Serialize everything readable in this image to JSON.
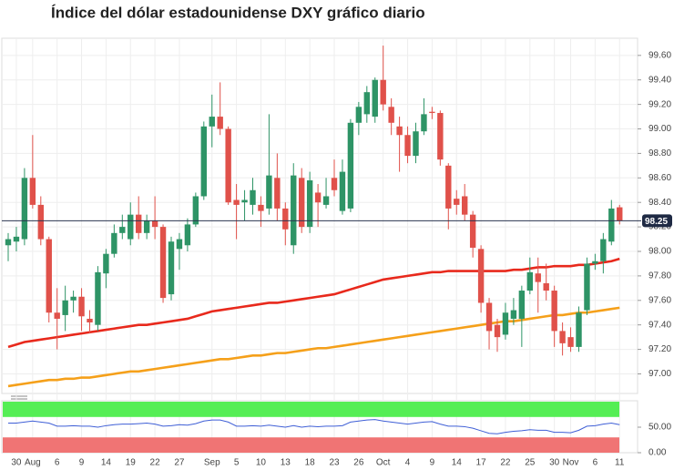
{
  "chart_data": [
    {
      "type": "candlestick",
      "title": "Índice del dólar estadounidense DXY gráfico diario",
      "categories": [
        null,
        "30",
        null,
        "Aug",
        null,
        null,
        "6",
        null,
        null,
        "9",
        null,
        null,
        "14",
        null,
        null,
        "19",
        null,
        null,
        "22",
        null,
        null,
        "27",
        null,
        null,
        null,
        "Sep",
        null,
        null,
        "5",
        null,
        null,
        "10",
        null,
        null,
        "13",
        null,
        null,
        "18",
        null,
        null,
        "23",
        null,
        null,
        "26",
        null,
        null,
        "Oct",
        null,
        null,
        "4",
        null,
        null,
        "9",
        null,
        null,
        "14",
        null,
        null,
        "17",
        null,
        null,
        "22",
        null,
        null,
        "25",
        null,
        null,
        "30",
        null,
        "Nov",
        null,
        null,
        "6",
        null,
        null,
        "11"
      ],
      "open": [
        98.05,
        98.08,
        98.1,
        98.6,
        98.38,
        98.1,
        97.5,
        97.48,
        97.6,
        97.63,
        97.45,
        97.4,
        97.82,
        97.98,
        98.15,
        98.1,
        98.3,
        98.15,
        98.25,
        98.2,
        97.65,
        98.02,
        98.05,
        98.22,
        98.45,
        99.02,
        99.1,
        99.0,
        98.42,
        98.4,
        98.38,
        98.38,
        98.35,
        98.6,
        98.35,
        98.05,
        98.6,
        98.2,
        98.48,
        98.38,
        98.6,
        98.33,
        98.35,
        99.05,
        99.12,
        99.1,
        99.4,
        99.18,
        99.02,
        98.95,
        98.78,
        98.98,
        99.14,
        99.13,
        98.7,
        98.43,
        98.45,
        98.3,
        98.02,
        97.58,
        97.4,
        97.32,
        97.45,
        97.45,
        97.68,
        97.82,
        97.74,
        97.68,
        97.35,
        97.3,
        97.22,
        97.52,
        97.9,
        97.92,
        98.08,
        98.36
      ],
      "high": [
        98.15,
        98.2,
        98.68,
        98.95,
        98.45,
        98.12,
        97.7,
        97.72,
        97.68,
        97.7,
        97.52,
        97.88,
        98.02,
        98.22,
        98.3,
        98.4,
        98.45,
        98.3,
        98.45,
        98.22,
        98.12,
        98.15,
        98.27,
        98.48,
        99.06,
        99.28,
        99.38,
        99.02,
        98.55,
        98.5,
        98.6,
        98.45,
        99.12,
        98.8,
        98.4,
        98.72,
        98.68,
        98.65,
        98.55,
        98.6,
        98.75,
        98.75,
        99.08,
        99.22,
        99.35,
        99.42,
        99.68,
        99.25,
        99.1,
        99.02,
        99.05,
        99.25,
        99.18,
        99.15,
        98.72,
        98.5,
        98.55,
        98.33,
        98.05,
        97.62,
        97.45,
        97.58,
        97.62,
        97.72,
        97.95,
        97.95,
        97.9,
        97.72,
        97.42,
        97.38,
        97.55,
        97.95,
        97.98,
        98.15,
        98.42,
        98.38
      ],
      "low": [
        97.92,
        98.0,
        98.05,
        98.35,
        98.05,
        97.42,
        97.2,
        97.35,
        97.5,
        97.35,
        97.33,
        97.35,
        97.7,
        97.95,
        98.1,
        98.05,
        98.1,
        98.1,
        98.1,
        97.58,
        97.6,
        97.85,
        98.0,
        98.2,
        98.42,
        98.85,
        98.95,
        98.38,
        98.1,
        98.25,
        98.3,
        98.2,
        98.3,
        98.25,
        98.05,
        97.98,
        98.15,
        98.15,
        98.2,
        98.35,
        98.45,
        98.3,
        98.32,
        98.95,
        99.05,
        99.05,
        99.15,
        98.95,
        98.65,
        98.72,
        98.72,
        98.95,
        99.08,
        98.7,
        98.18,
        98.3,
        98.25,
        97.95,
        97.5,
        97.2,
        97.18,
        97.28,
        97.4,
        97.22,
        97.65,
        97.5,
        97.6,
        97.22,
        97.15,
        97.18,
        97.18,
        97.48,
        97.85,
        97.82,
        98.05,
        98.22
      ],
      "close": [
        98.1,
        98.12,
        98.6,
        98.38,
        98.1,
        97.5,
        97.45,
        97.6,
        97.63,
        97.47,
        97.42,
        97.83,
        97.98,
        98.15,
        98.2,
        98.3,
        98.15,
        98.25,
        98.2,
        97.62,
        98.08,
        98.1,
        98.22,
        98.45,
        99.02,
        99.1,
        99.0,
        98.4,
        98.38,
        98.42,
        98.5,
        98.33,
        98.62,
        98.35,
        98.18,
        98.62,
        98.2,
        98.58,
        98.4,
        98.45,
        98.5,
        98.65,
        99.05,
        99.18,
        99.3,
        99.4,
        99.2,
        99.05,
        98.95,
        98.78,
        98.98,
        99.12,
        99.13,
        98.75,
        98.35,
        98.38,
        98.3,
        98.03,
        97.58,
        97.35,
        97.3,
        97.5,
        97.52,
        97.68,
        97.83,
        97.75,
        97.68,
        97.35,
        97.25,
        97.22,
        97.5,
        97.9,
        97.92,
        98.1,
        98.35,
        98.25
      ],
      "up_color": "#2e9466",
      "down_color": "#e0514a",
      "overlays": [
        {
          "color": "#e8291c",
          "values": [
            97.22,
            97.24,
            97.26,
            97.27,
            97.28,
            97.29,
            97.3,
            97.31,
            97.32,
            97.33,
            97.34,
            97.35,
            97.36,
            97.37,
            97.38,
            97.39,
            97.4,
            97.4,
            97.41,
            97.42,
            97.43,
            97.44,
            97.45,
            97.47,
            97.49,
            97.51,
            97.52,
            97.53,
            97.54,
            97.55,
            97.56,
            97.57,
            97.58,
            97.58,
            97.59,
            97.6,
            97.61,
            97.62,
            97.63,
            97.64,
            97.65,
            97.67,
            97.69,
            97.71,
            97.73,
            97.75,
            97.77,
            97.78,
            97.79,
            97.8,
            97.81,
            97.82,
            97.83,
            97.83,
            97.84,
            97.84,
            97.84,
            97.84,
            97.84,
            97.84,
            97.84,
            97.84,
            97.85,
            97.85,
            97.86,
            97.87,
            97.87,
            97.88,
            97.88,
            97.88,
            97.89,
            97.89,
            97.9,
            97.91,
            97.92,
            97.94
          ]
        },
        {
          "color": "#f5a01a",
          "values": [
            96.9,
            96.91,
            96.92,
            96.93,
            96.94,
            96.95,
            96.95,
            96.96,
            96.96,
            96.97,
            96.97,
            96.98,
            96.99,
            97.0,
            97.01,
            97.02,
            97.02,
            97.03,
            97.04,
            97.05,
            97.06,
            97.07,
            97.08,
            97.09,
            97.1,
            97.11,
            97.12,
            97.12,
            97.13,
            97.14,
            97.15,
            97.15,
            97.16,
            97.17,
            97.17,
            97.18,
            97.19,
            97.2,
            97.21,
            97.21,
            97.22,
            97.23,
            97.24,
            97.25,
            97.26,
            97.27,
            97.28,
            97.29,
            97.3,
            97.31,
            97.32,
            97.33,
            97.34,
            97.35,
            97.36,
            97.37,
            97.38,
            97.39,
            97.4,
            97.41,
            97.42,
            97.43,
            97.43,
            97.44,
            97.45,
            97.46,
            97.47,
            97.48,
            97.48,
            97.49,
            97.5,
            97.5,
            97.51,
            97.52,
            97.53,
            97.54
          ]
        }
      ],
      "last": {
        "value": 98.25,
        "label": "98.25"
      },
      "ylim": [
        96.84,
        99.74
      ],
      "yticks": [
        {
          "value": 97.0,
          "label": "97.00"
        },
        {
          "value": 97.2,
          "label": "97.20"
        },
        {
          "value": 97.4,
          "label": "97.40"
        },
        {
          "value": 97.6,
          "label": "97.60"
        },
        {
          "value": 97.8,
          "label": "97.80"
        },
        {
          "value": 98.0,
          "label": "98.00"
        },
        {
          "value": 98.2,
          "label": "98.20"
        },
        {
          "value": 98.4,
          "label": "98.40"
        },
        {
          "value": 98.6,
          "label": "98.60"
        },
        {
          "value": 98.8,
          "label": "98.80"
        },
        {
          "value": 99.0,
          "label": "99.00"
        },
        {
          "value": 99.2,
          "label": "99.20"
        },
        {
          "value": 99.4,
          "label": "99.40"
        },
        {
          "value": 99.6,
          "label": "99.60"
        }
      ],
      "grid": true
    },
    {
      "type": "line",
      "color": "#3f5fd6",
      "values": [
        58,
        58,
        60,
        62,
        60,
        58,
        52,
        52,
        53,
        52,
        52,
        50,
        53,
        55,
        56,
        56,
        57,
        58,
        56,
        52,
        53,
        55,
        54,
        57,
        62,
        64,
        64,
        60,
        52,
        52,
        53,
        52,
        54,
        52,
        50,
        53,
        50,
        52,
        51,
        52,
        52,
        53,
        60,
        62,
        64,
        65,
        62,
        60,
        58,
        56,
        58,
        60,
        61,
        56,
        52,
        52,
        51,
        48,
        43,
        38,
        37,
        40,
        42,
        43,
        45,
        44,
        44,
        40,
        40,
        39,
        44,
        52,
        53,
        56,
        58,
        55
      ],
      "zones": [
        {
          "range": [
            70,
            100
          ],
          "color": "#55ee55"
        },
        {
          "range": [
            0,
            30
          ],
          "color": "#f07474"
        }
      ],
      "ylim": [
        0,
        100
      ],
      "yticks": [
        {
          "value": 50,
          "label": "50.00"
        },
        {
          "value": 0,
          "label": "0.00"
        }
      ]
    }
  ]
}
